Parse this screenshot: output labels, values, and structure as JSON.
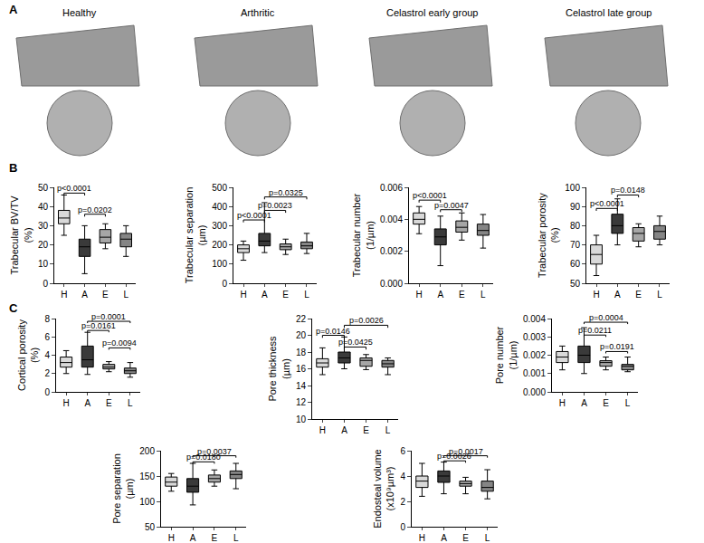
{
  "panel_labels": [
    "A",
    "B",
    "C"
  ],
  "image_titles": [
    "Healthy",
    "Arthritic",
    "Celastrol early group",
    "Celastrol late group"
  ],
  "chart_data": [
    {
      "type": "box",
      "y_label": [
        "Trabecular BV/TV",
        "(%)"
      ],
      "categories": [
        "H",
        "A",
        "E",
        "L"
      ],
      "colors": [
        "#d9d9d9",
        "#3a3a3a",
        "#a6a6a6",
        "#858585"
      ],
      "lowerfence": [
        25,
        5,
        18,
        14
      ],
      "q1": [
        31,
        14,
        21,
        19
      ],
      "median": [
        34,
        19,
        24,
        23
      ],
      "q3": [
        38,
        23,
        28,
        26
      ],
      "upperfence": [
        46,
        30,
        31,
        30
      ],
      "ylim": [
        0,
        50
      ],
      "yticks": [
        0,
        10,
        20,
        30,
        40,
        50
      ],
      "comparisons": [
        {
          "from": "H",
          "to": "A",
          "text": "p<0.0001",
          "y": 47
        },
        {
          "from": "A",
          "to": "E",
          "text": "p=0.0202",
          "y": 36
        }
      ]
    },
    {
      "type": "box",
      "y_label": [
        "Trabecular separation",
        "(µm)"
      ],
      "categories": [
        "H",
        "A",
        "E",
        "L"
      ],
      "colors": [
        "#d9d9d9",
        "#3a3a3a",
        "#a6a6a6",
        "#858585"
      ],
      "lowerfence": [
        120,
        160,
        150,
        155
      ],
      "q1": [
        160,
        195,
        175,
        180
      ],
      "median": [
        180,
        220,
        190,
        195
      ],
      "q3": [
        200,
        260,
        205,
        215
      ],
      "upperfence": [
        220,
        420,
        230,
        260
      ],
      "ylim": [
        0,
        500
      ],
      "yticks": [
        0,
        100,
        200,
        300,
        400,
        500
      ],
      "comparisons": [
        {
          "from": "H",
          "to": "A",
          "text": "p<0.0001",
          "y": 330
        },
        {
          "from": "A",
          "to": "E",
          "text": "p=0.0023",
          "y": 380
        },
        {
          "from": "A",
          "to": "L",
          "text": "p=0.0325",
          "y": 450
        }
      ]
    },
    {
      "type": "box",
      "y_label": [
        "Trabecular number",
        "(1/µm)"
      ],
      "categories": [
        "H",
        "A",
        "E",
        "L"
      ],
      "colors": [
        "#d9d9d9",
        "#3a3a3a",
        "#a6a6a6",
        "#858585"
      ],
      "lowerfence": [
        0.0031,
        0.0011,
        0.0027,
        0.0022
      ],
      "q1": [
        0.0037,
        0.0024,
        0.0032,
        0.003
      ],
      "median": [
        0.004,
        0.0029,
        0.0035,
        0.0033
      ],
      "q3": [
        0.0044,
        0.0034,
        0.0039,
        0.0037
      ],
      "upperfence": [
        0.0048,
        0.0042,
        0.0044,
        0.0043
      ],
      "ylim": [
        0,
        0.006
      ],
      "yticks": [
        {
          "value": 0,
          "label": "0.000"
        },
        {
          "value": 0.002,
          "label": "0.002"
        },
        {
          "value": 0.004,
          "label": "0.004"
        },
        {
          "value": 0.006,
          "label": "0.006"
        }
      ],
      "comparisons": [
        {
          "from": "H",
          "to": "A",
          "text": "p<0.0001",
          "y": 0.0052
        },
        {
          "from": "A",
          "to": "E",
          "text": "p=0.0047",
          "y": 0.0046
        }
      ]
    },
    {
      "type": "box",
      "y_label": [
        "Trabecular porosity",
        "(%)"
      ],
      "categories": [
        "H",
        "A",
        "E",
        "L"
      ],
      "colors": [
        "#d9d9d9",
        "#3a3a3a",
        "#a6a6a6",
        "#858585"
      ],
      "lowerfence": [
        54,
        70,
        69,
        70
      ],
      "q1": [
        60,
        76,
        72,
        73
      ],
      "median": [
        65,
        80,
        76,
        77
      ],
      "q3": [
        70,
        86,
        79,
        80
      ],
      "upperfence": [
        75,
        94,
        81,
        85
      ],
      "ylim": [
        50,
        100
      ],
      "yticks": [
        50,
        60,
        70,
        80,
        90,
        100
      ],
      "comparisons": [
        {
          "from": "H",
          "to": "A",
          "text": "p<0.0001",
          "y": 89
        },
        {
          "from": "A",
          "to": "E",
          "text": "p=0.0148",
          "y": 96
        }
      ]
    },
    {
      "type": "box",
      "y_label": [
        "Cortical porosity",
        "(%)"
      ],
      "categories": [
        "H",
        "A",
        "E",
        "L"
      ],
      "colors": [
        "#d9d9d9",
        "#3a3a3a",
        "#a6a6a6",
        "#858585"
      ],
      "lowerfence": [
        2,
        1.9,
        2.2,
        1.6
      ],
      "q1": [
        2.7,
        2.7,
        2.5,
        2
      ],
      "median": [
        3.2,
        3.5,
        2.7,
        2.3
      ],
      "q3": [
        3.8,
        5,
        3,
        2.6
      ],
      "upperfence": [
        4.5,
        6.5,
        3.3,
        3.2
      ],
      "ylim": [
        0,
        8
      ],
      "yticks": [
        0,
        2,
        4,
        6,
        8
      ],
      "comparisons": [
        {
          "from": "A",
          "to": "L",
          "text": "p=0.0001",
          "y": 7.7
        },
        {
          "from": "A",
          "to": "E",
          "text": "p=0.0161",
          "y": 6.7
        },
        {
          "from": "E",
          "to": "L",
          "text": "p=0.0094",
          "y": 4.8
        }
      ]
    },
    {
      "type": "box",
      "y_label": [
        "Pore thickness",
        "(µm)"
      ],
      "categories": [
        "H",
        "A",
        "E",
        "L"
      ],
      "colors": [
        "#d9d9d9",
        "#3a3a3a",
        "#a6a6a6",
        "#858585"
      ],
      "lowerfence": [
        15.3,
        16,
        15.9,
        15.3
      ],
      "q1": [
        16.2,
        16.7,
        16.3,
        16.2
      ],
      "median": [
        16.7,
        17.3,
        17,
        16.6
      ],
      "q3": [
        17.2,
        18,
        17.3,
        17
      ],
      "upperfence": [
        18.5,
        19.8,
        17.7,
        17.3
      ],
      "ylim": [
        10,
        22
      ],
      "yticks": [
        10,
        12,
        14,
        16,
        18,
        20,
        22
      ],
      "comparisons": [
        {
          "from": "H",
          "to": "A",
          "text": "p=0.0146",
          "y": 20
        },
        {
          "from": "A",
          "to": "E",
          "text": "p=0.0425",
          "y": 18.6
        },
        {
          "from": "A",
          "to": "L",
          "text": "p=0.0026",
          "y": 21.2
        }
      ]
    },
    {
      "type": "box",
      "y_label": [
        "Pore number",
        "(1/µm)"
      ],
      "categories": [
        "H",
        "A",
        "E",
        "L"
      ],
      "colors": [
        "#d9d9d9",
        "#3a3a3a",
        "#a6a6a6",
        "#858585"
      ],
      "lowerfence": [
        0.0012,
        0.001,
        0.0012,
        0.0011
      ],
      "q1": [
        0.0016,
        0.0016,
        0.0014,
        0.0012
      ],
      "median": [
        0.0019,
        0.002,
        0.0016,
        0.0014
      ],
      "q3": [
        0.0022,
        0.0025,
        0.0017,
        0.0015
      ],
      "upperfence": [
        0.0025,
        0.0035,
        0.0019,
        0.0019
      ],
      "ylim": [
        0,
        0.004
      ],
      "yticks": [
        {
          "value": 0,
          "label": "0.000"
        },
        {
          "value": 0.001,
          "label": "0.001"
        },
        {
          "value": 0.002,
          "label": "0.002"
        },
        {
          "value": 0.003,
          "label": "0.003"
        },
        {
          "value": 0.004,
          "label": "0.004"
        }
      ],
      "comparisons": [
        {
          "from": "A",
          "to": "L",
          "text": "p=0.0004",
          "y": 0.0038
        },
        {
          "from": "A",
          "to": "E",
          "text": "p=0.0211",
          "y": 0.0031
        },
        {
          "from": "E",
          "to": "L",
          "text": "p=0.0191",
          "y": 0.0022
        }
      ]
    },
    {
      "type": "box",
      "y_label": [
        "Pore separation",
        "(µm)"
      ],
      "categories": [
        "H",
        "A",
        "E",
        "L"
      ],
      "colors": [
        "#d9d9d9",
        "#3a3a3a",
        "#a6a6a6",
        "#858585"
      ],
      "lowerfence": [
        120,
        93,
        130,
        125
      ],
      "q1": [
        130,
        118,
        138,
        145
      ],
      "median": [
        138,
        130,
        145,
        153
      ],
      "q3": [
        148,
        145,
        152,
        160
      ],
      "upperfence": [
        155,
        175,
        162,
        175
      ],
      "ylim": [
        50,
        200
      ],
      "yticks": [
        50,
        100,
        150,
        200
      ],
      "comparisons": [
        {
          "from": "A",
          "to": "L",
          "text": "p=0.0037",
          "y": 190
        },
        {
          "from": "A",
          "to": "E",
          "text": "p=0.0180",
          "y": 178
        }
      ]
    },
    {
      "type": "box",
      "y_label": [
        "Endosteal volume",
        "(x10⁹µm³)"
      ],
      "categories": [
        "H",
        "A",
        "E",
        "L"
      ],
      "colors": [
        "#d9d9d9",
        "#3a3a3a",
        "#a6a6a6",
        "#858585"
      ],
      "lowerfence": [
        2.4,
        2.6,
        2.6,
        2.2
      ],
      "q1": [
        3.1,
        3.5,
        3.2,
        2.8
      ],
      "median": [
        3.6,
        4,
        3.4,
        3.1
      ],
      "q3": [
        4,
        4.4,
        3.6,
        3.6
      ],
      "upperfence": [
        5,
        5.1,
        3.9,
        4.5
      ],
      "ylim": [
        0,
        6
      ],
      "yticks": [
        0,
        2,
        4,
        6
      ],
      "comparisons": [
        {
          "from": "A",
          "to": "L",
          "text": "p=0.0017",
          "y": 5.6
        },
        {
          "from": "A",
          "to": "E",
          "text": "p=0.0026",
          "y": 5.2
        }
      ]
    }
  ]
}
